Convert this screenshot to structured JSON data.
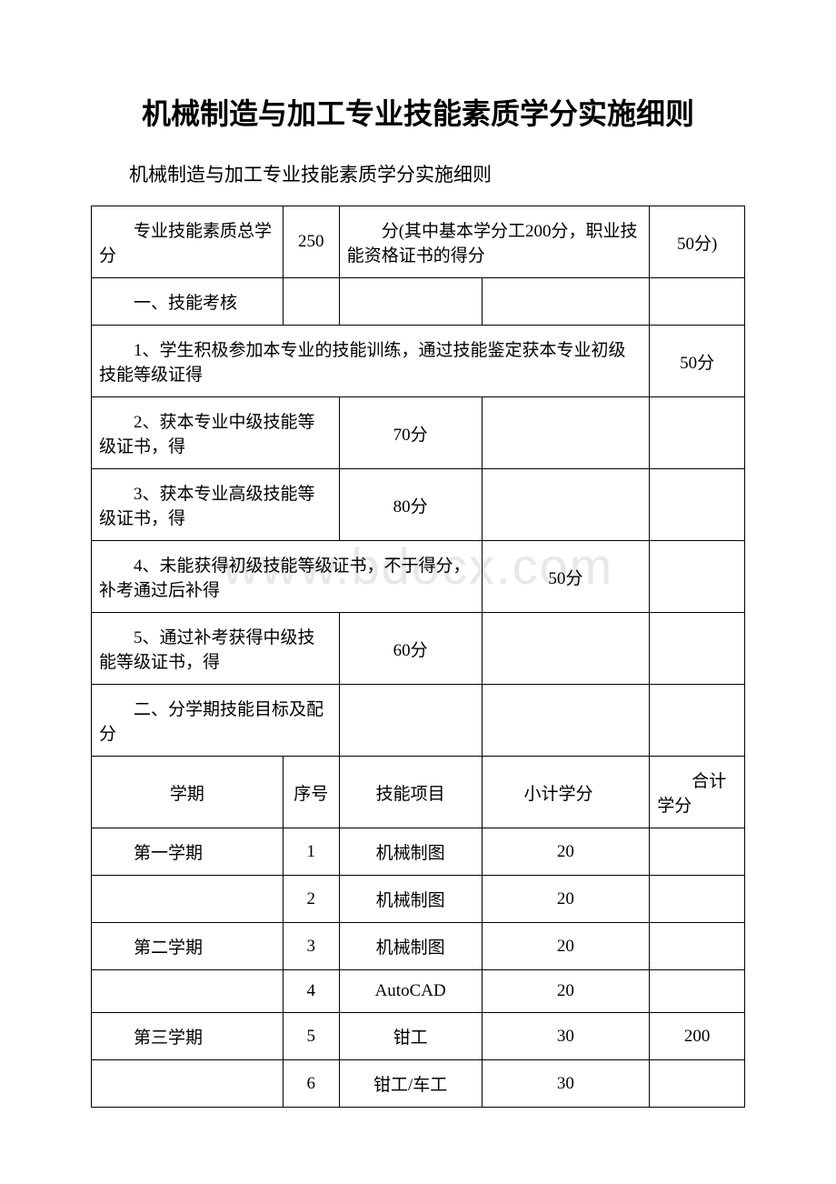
{
  "title": "机械制造与加工专业技能素质学分实施细则",
  "subtitle": "机械制造与加工专业技能素质学分实施细则",
  "watermark": "www.bdocx.com",
  "header_row": {
    "col1": "专业技能素质总学分",
    "col2": "250",
    "col3": "分(其中基本学分工200分，职业技能资格证书的得分",
    "col4": "50分)"
  },
  "section1_title": "一、技能考核",
  "rules": [
    {
      "text": "1、学生积极参加本专业的技能训练，通过技能鉴定获本专业初级技能等级证得",
      "score": "50分",
      "span": 4
    },
    {
      "text": "2、获本专业中级技能等级证书，得",
      "score": "70分",
      "span": 2
    },
    {
      "text": "3、获本专业高级技能等级证书，得",
      "score": "80分",
      "span": 2
    },
    {
      "text": "4、未能获得初级技能等级证书，不于得分，补考通过后补得",
      "score": "50分",
      "span": 3
    },
    {
      "text": "5、通过补考获得中级技能等级证书，得",
      "score": "60分",
      "span": 2
    }
  ],
  "section2_title": "二、分学期技能目标及配分",
  "columns": {
    "c1": "学期",
    "c2": "序号",
    "c3": "技能项目",
    "c4": "小计学分",
    "c5": "合计学分"
  },
  "rows": [
    {
      "term": "第一学期",
      "num": "1",
      "project": "机械制图",
      "subtotal": "20",
      "total": ""
    },
    {
      "term": "",
      "num": "2",
      "project": "机械制图",
      "subtotal": "20",
      "total": ""
    },
    {
      "term": "第二学期",
      "num": "3",
      "project": "机械制图",
      "subtotal": "20",
      "total": ""
    },
    {
      "term": "",
      "num": "4",
      "project": "AutoCAD",
      "subtotal": "20",
      "total": ""
    },
    {
      "term": "第三学期",
      "num": "5",
      "project": "钳工",
      "subtotal": "30",
      "total": "200"
    },
    {
      "term": "",
      "num": "6",
      "project": "钳工/车工",
      "subtotal": "30",
      "total": ""
    }
  ],
  "colors": {
    "text": "#000000",
    "background": "#ffffff",
    "border": "#000000",
    "watermark": "#e8e8e8"
  }
}
